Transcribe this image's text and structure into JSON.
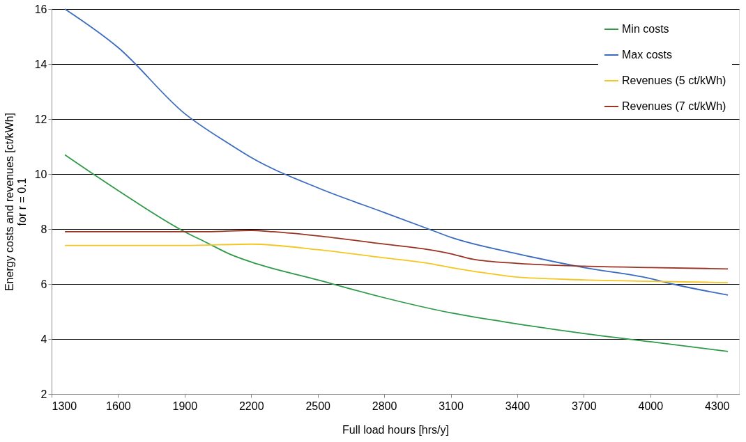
{
  "chart_data": {
    "type": "line",
    "xlabel": "Full load hours [hrs/y]",
    "ylabel": "Energy costs and revenues [ct/kWh]\nfor r = 0.1",
    "xlim": [
      1300,
      4400
    ],
    "xticks": [
      1300,
      1600,
      1900,
      2200,
      2500,
      2800,
      3100,
      3400,
      3700,
      4000,
      4300
    ],
    "ylim": [
      2,
      16
    ],
    "yticks": [
      2,
      4,
      6,
      8,
      10,
      12,
      14,
      16
    ],
    "grid": "y",
    "legend": "top right",
    "marker": "none",
    "line_style": "solid",
    "series": [
      {
        "name": "Min costs",
        "color": "#2e9a48",
        "x": [
          1360,
          1600,
          1900,
          2000,
          2100,
          2200,
          2500,
          2800,
          3100,
          3400,
          3700,
          4000,
          4350
        ],
        "values": [
          10.7,
          9.4,
          7.9,
          7.5,
          7.1,
          6.8,
          6.15,
          5.5,
          4.95,
          4.55,
          4.2,
          3.9,
          3.55
        ]
      },
      {
        "name": "Max costs",
        "color": "#3a6bc0",
        "x": [
          1360,
          1600,
          1900,
          2100,
          2200,
          2500,
          2800,
          3000,
          3100,
          3400,
          3700,
          4000,
          4100,
          4350
        ],
        "values": [
          16.0,
          14.6,
          12.2,
          11.1,
          10.6,
          9.5,
          8.6,
          8.0,
          7.7,
          7.1,
          6.6,
          6.2,
          6.0,
          5.6
        ]
      },
      {
        "name": "Revenues (5 ct/kWh)",
        "color": "#f5c520",
        "x": [
          1360,
          1900,
          2200,
          2500,
          2800,
          3000,
          3100,
          3300,
          3400,
          3700,
          4000,
          4350
        ],
        "values": [
          7.4,
          7.4,
          7.45,
          7.25,
          6.95,
          6.75,
          6.6,
          6.35,
          6.25,
          6.15,
          6.1,
          6.05
        ]
      },
      {
        "name": "Revenues (7 ct/kWh)",
        "color": "#9a3324",
        "x": [
          1360,
          2000,
          2200,
          2300,
          2500,
          2800,
          3000,
          3100,
          3200,
          3400,
          3700,
          4000,
          4350
        ],
        "values": [
          7.9,
          7.9,
          7.95,
          7.9,
          7.75,
          7.45,
          7.25,
          7.1,
          6.9,
          6.75,
          6.65,
          6.6,
          6.55
        ]
      }
    ]
  }
}
